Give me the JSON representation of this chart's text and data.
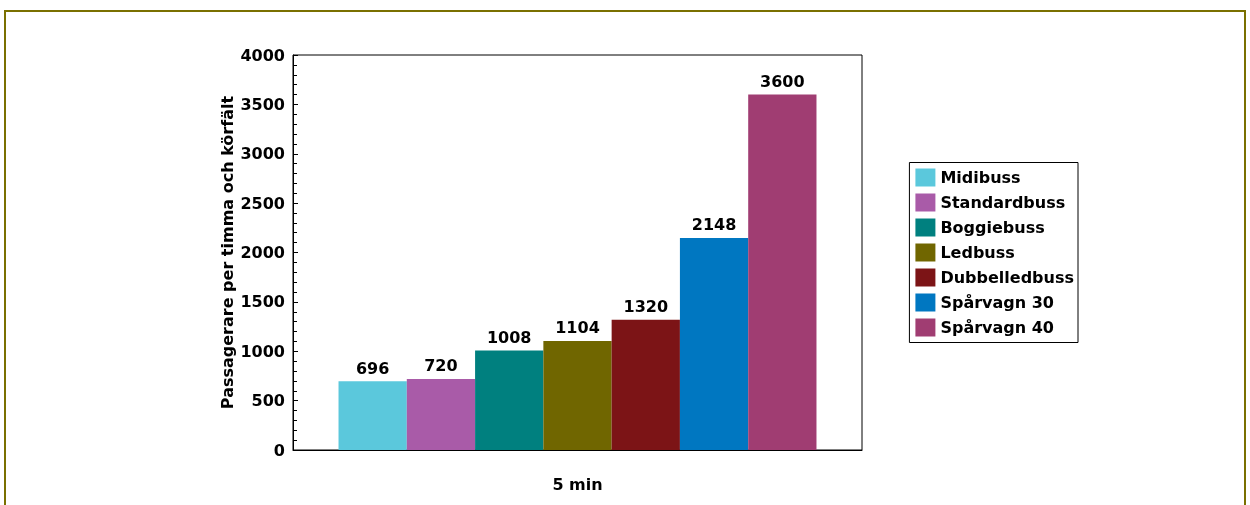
{
  "chart_data": {
    "type": "bar",
    "ylabel": "Passagerare per timma och körfält",
    "categories": [
      "5 min"
    ],
    "series": [
      {
        "name": "Midibuss",
        "color": "#5bc8dc",
        "values": [
          696
        ]
      },
      {
        "name": "Standardbuss",
        "color": "#a95ba8",
        "values": [
          720
        ]
      },
      {
        "name": "Boggiebuss",
        "color": "#00807f",
        "values": [
          1008
        ]
      },
      {
        "name": "Ledbuss",
        "color": "#706600",
        "values": [
          1104
        ]
      },
      {
        "name": "Dubbelledbuss",
        "color": "#7c1416",
        "values": [
          1320
        ]
      },
      {
        "name": "Spårvagn 30",
        "color": "#0077c1",
        "values": [
          2148
        ]
      },
      {
        "name": "Spårvagn 40",
        "color": "#a03d72",
        "values": [
          3600
        ]
      }
    ],
    "ylim": [
      0,
      4000
    ],
    "yticks": [
      0,
      500,
      1000,
      1500,
      2000,
      2500,
      3000,
      3500,
      4000
    ],
    "grid": false,
    "legend": "right",
    "data_labels": true
  }
}
